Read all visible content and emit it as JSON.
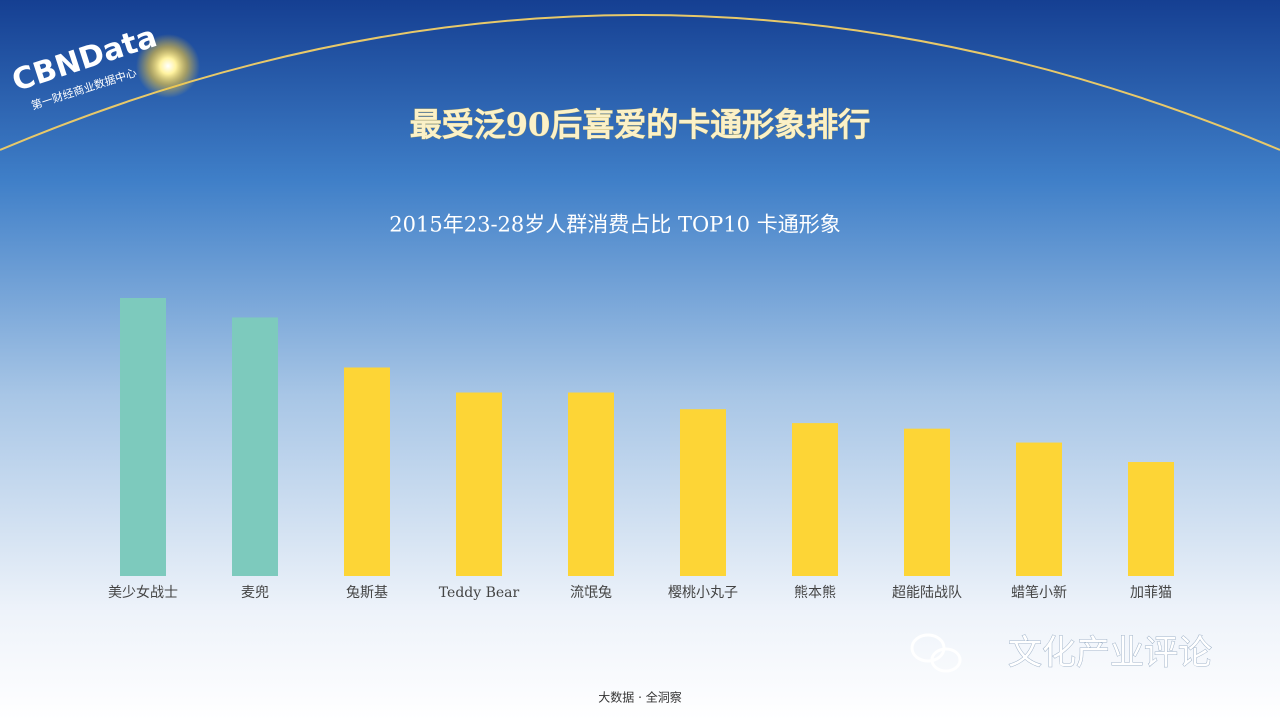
{
  "header": {
    "logo": "CBNData",
    "logo_subtitle": "第一财经商业数据中心",
    "title": "最受泛90后喜爱的卡通形象排行"
  },
  "chart_data": {
    "type": "bar",
    "title": "2015年23-28岁人群消费占比 TOP10 卡通形象",
    "categories": [
      "美少女战士",
      "麦兜",
      "兔斯基",
      "Teddy Bear",
      "流氓兔",
      "樱桃小丸子",
      "熊本熊",
      "超能陆战队",
      "蜡笔小新",
      "加菲猫"
    ],
    "values": [
      100,
      93,
      75,
      66,
      66,
      60,
      55,
      53,
      48,
      41
    ],
    "colors": [
      "#7dcabd",
      "#7dcabd",
      "#fdd536",
      "#fdd536",
      "#fdd536",
      "#fdd536",
      "#fdd536",
      "#fdd536",
      "#fdd536",
      "#fdd536"
    ]
  },
  "footer": "大数据 · 全洞察",
  "watermark": "文化产业评论"
}
